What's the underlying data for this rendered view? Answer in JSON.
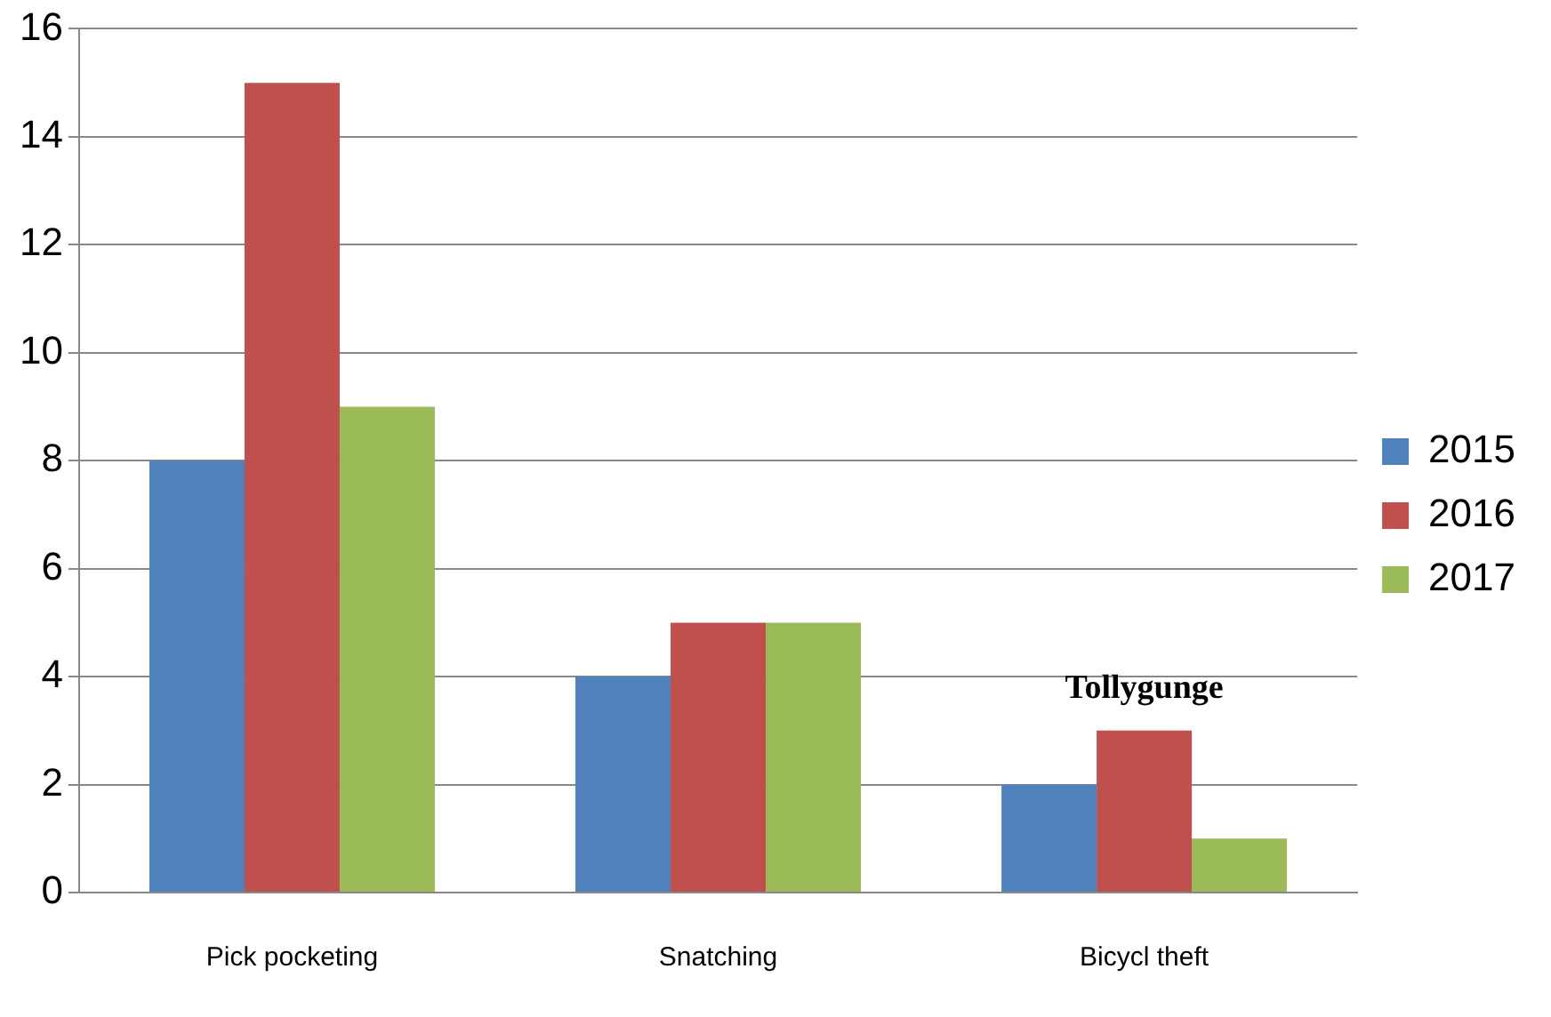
{
  "chart_data": {
    "type": "bar",
    "categories": [
      "Pick pocketing",
      "Snatching",
      "Bicycl theft"
    ],
    "series": [
      {
        "name": "2015",
        "color": "#4f81bd",
        "values": [
          8,
          4,
          2
        ]
      },
      {
        "name": "2016",
        "color": "#c0504d",
        "values": [
          15,
          5,
          3
        ]
      },
      {
        "name": "2017",
        "color": "#9bbb59",
        "values": [
          9,
          5,
          1
        ]
      }
    ],
    "ylim": [
      0,
      16
    ],
    "yticks": [
      0,
      2,
      4,
      6,
      8,
      10,
      12,
      14,
      16
    ],
    "grid": "y",
    "legend": "right",
    "annotations": [
      "Tollygunge"
    ]
  }
}
